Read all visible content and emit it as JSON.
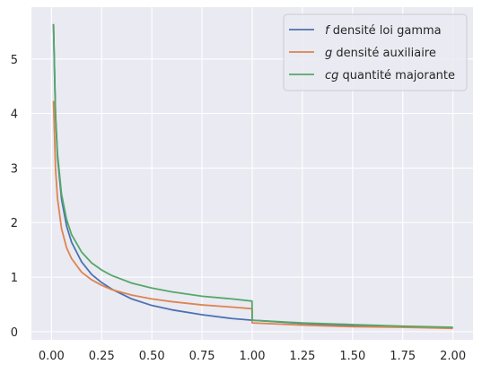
{
  "chart_data": {
    "type": "line",
    "title": "",
    "xlabel": "",
    "ylabel": "",
    "xlim": [
      -0.1,
      2.1
    ],
    "ylim": [
      -0.15,
      5.95
    ],
    "grid": true,
    "legend_position": "top-right",
    "x_ticks": [
      "0.00",
      "0.25",
      "0.50",
      "0.75",
      "1.00",
      "1.25",
      "1.50",
      "1.75",
      "2.00"
    ],
    "y_ticks": [
      "0",
      "1",
      "2",
      "3",
      "4",
      "5"
    ],
    "colors": {
      "background": "#eaeaf2",
      "grid": "#ffffff"
    },
    "series": [
      {
        "name": "f densité loi gamma",
        "legend_italic": "f",
        "legend_rest": " densité loi gamma",
        "color": "#4c72b0",
        "x": [
          0.01,
          0.02,
          0.03,
          0.05,
          0.075,
          0.1,
          0.15,
          0.2,
          0.25,
          0.3,
          0.4,
          0.5,
          0.6,
          0.75,
          0.9,
          1.0,
          1.25,
          1.5,
          1.75,
          2.0
        ],
        "y": [
          5.64,
          3.96,
          3.2,
          2.43,
          1.94,
          1.64,
          1.28,
          1.05,
          0.9,
          0.78,
          0.6,
          0.48,
          0.4,
          0.31,
          0.24,
          0.21,
          0.15,
          0.11,
          0.09,
          0.07
        ]
      },
      {
        "name": "g densité auxiliaire",
        "legend_italic": "g",
        "legend_rest": " densité auxiliaire",
        "color": "#dd8452",
        "x": [
          0.01,
          0.02,
          0.03,
          0.05,
          0.075,
          0.1,
          0.15,
          0.2,
          0.25,
          0.3,
          0.4,
          0.5,
          0.6,
          0.75,
          0.9,
          0.999,
          1.0,
          1.25,
          1.5,
          1.75,
          2.0
        ],
        "y": [
          4.23,
          2.99,
          2.44,
          1.89,
          1.54,
          1.34,
          1.09,
          0.95,
          0.85,
          0.77,
          0.67,
          0.6,
          0.55,
          0.49,
          0.45,
          0.42,
          0.16,
          0.12,
          0.09,
          0.08,
          0.06
        ]
      },
      {
        "name": "cg quantité majorante",
        "legend_italic": "cg",
        "legend_rest": " quantité majorante",
        "color": "#55a868",
        "x": [
          0.01,
          0.02,
          0.03,
          0.05,
          0.075,
          0.1,
          0.15,
          0.2,
          0.25,
          0.3,
          0.4,
          0.5,
          0.6,
          0.75,
          0.9,
          0.999,
          1.0,
          1.25,
          1.5,
          1.75,
          2.0
        ],
        "y": [
          5.64,
          3.99,
          3.26,
          2.52,
          2.06,
          1.78,
          1.46,
          1.26,
          1.13,
          1.03,
          0.89,
          0.8,
          0.73,
          0.65,
          0.6,
          0.56,
          0.21,
          0.16,
          0.13,
          0.1,
          0.08
        ]
      }
    ]
  }
}
